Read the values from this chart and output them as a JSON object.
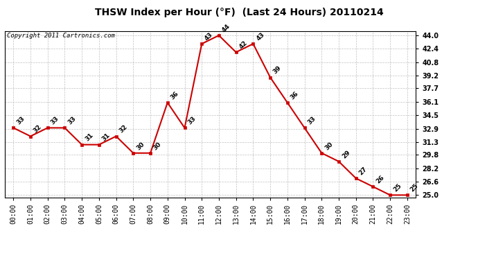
{
  "title": "THSW Index per Hour (°F)  (Last 24 Hours) 20110214",
  "copyright": "Copyright 2011 Cartronics.com",
  "hours": [
    "00:00",
    "01:00",
    "02:00",
    "03:00",
    "04:00",
    "05:00",
    "06:00",
    "07:00",
    "08:00",
    "09:00",
    "10:00",
    "11:00",
    "12:00",
    "13:00",
    "14:00",
    "15:00",
    "16:00",
    "17:00",
    "18:00",
    "19:00",
    "20:00",
    "21:00",
    "22:00",
    "23:00"
  ],
  "values": [
    33,
    32,
    33,
    33,
    31,
    31,
    32,
    30,
    30,
    36,
    33,
    43,
    44,
    42,
    43,
    39,
    36,
    33,
    30,
    29,
    27,
    26,
    25,
    25
  ],
  "ylim_min": 25.0,
  "ylim_max": 44.0,
  "ytick_vals": [
    25.0,
    26.6,
    28.2,
    29.8,
    31.3,
    32.9,
    34.5,
    36.1,
    37.7,
    39.2,
    40.8,
    42.4,
    44.0
  ],
  "line_color": "#cc0000",
  "marker_color": "#cc0000",
  "bg_color": "#ffffff",
  "grid_color": "#c0c0c0",
  "title_fontsize": 10,
  "label_fontsize": 7,
  "copyright_fontsize": 6.5,
  "annot_fontsize": 6.5
}
